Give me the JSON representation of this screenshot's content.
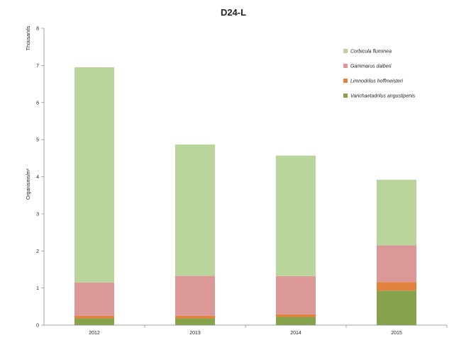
{
  "chart_data": {
    "type": "bar",
    "stacked": true,
    "title": "D24-L",
    "ylabel": "Organisms/m²",
    "y_unit_label": "Thousands",
    "xlabel": "",
    "categories": [
      "2012",
      "2013",
      "2014",
      "2015"
    ],
    "ylim": [
      0,
      8
    ],
    "yticks": [
      0,
      1,
      2,
      3,
      4,
      5,
      6,
      7,
      8
    ],
    "grid": false,
    "legend_position": "right",
    "series": [
      {
        "name": "Varichaetadrilus angustipenis",
        "color": "#86a34b",
        "values": [
          0.18,
          0.18,
          0.22,
          0.93
        ]
      },
      {
        "name": "Limnodrilus hoffmeisteri",
        "color": "#e1823f",
        "values": [
          0.07,
          0.07,
          0.07,
          0.23
        ]
      },
      {
        "name": "Gammarus daiberi",
        "color": "#dc9897",
        "values": [
          0.9,
          1.08,
          1.03,
          0.99
        ]
      },
      {
        "name": "Corbicula fluminea",
        "color": "#b9d59c",
        "values": [
          5.8,
          3.54,
          3.25,
          1.77
        ]
      }
    ]
  }
}
